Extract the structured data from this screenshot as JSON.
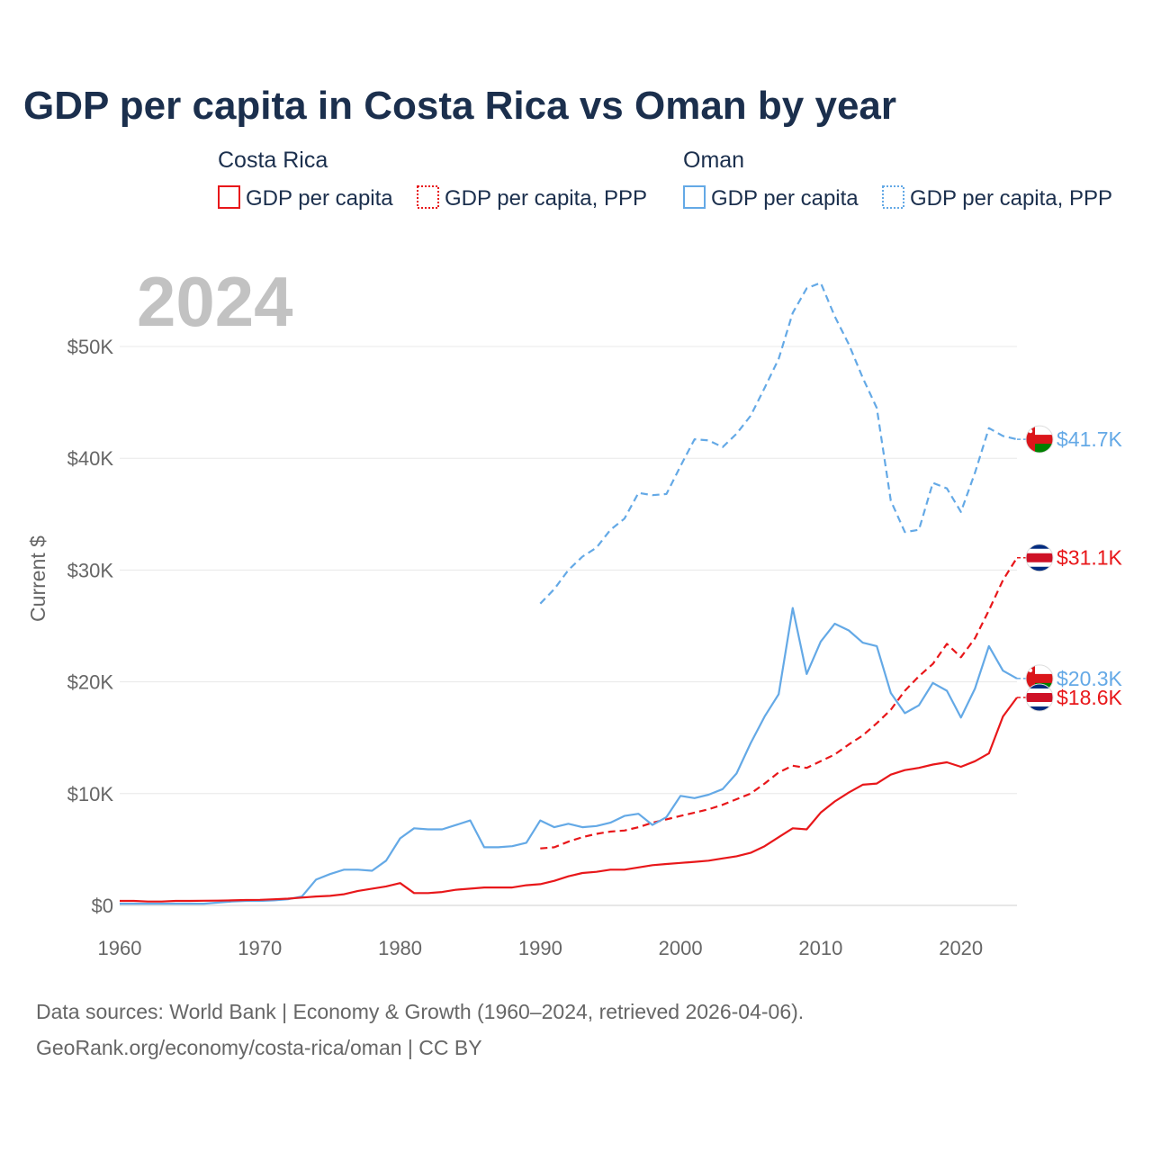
{
  "chart_data": {
    "type": "line",
    "title": "GDP per capita in Costa Rica vs Oman by year",
    "ylabel": "Current $",
    "xlabel": "",
    "year_label": "2024",
    "xlim": [
      1960,
      2024
    ],
    "ylim": [
      0,
      56000
    ],
    "x_ticks": [
      1960,
      1970,
      1980,
      1990,
      2000,
      2010,
      2020
    ],
    "y_ticks": [
      {
        "value": 0,
        "label": "$0"
      },
      {
        "value": 10000,
        "label": "$10K"
      },
      {
        "value": 20000,
        "label": "$20K"
      },
      {
        "value": 30000,
        "label": "$30K"
      },
      {
        "value": 40000,
        "label": "$40K"
      },
      {
        "value": 50000,
        "label": "$50K"
      }
    ],
    "legend": {
      "groups": [
        {
          "name": "Costa Rica",
          "items": [
            "GDP per capita",
            "GDP per capita, PPP"
          ]
        },
        {
          "name": "Oman",
          "items": [
            "GDP per capita",
            "GDP per capita, PPP"
          ]
        }
      ]
    },
    "series": [
      {
        "name": "Oman GDP per capita, PPP",
        "country": "Oman",
        "color": "#64a9e6",
        "dashed": true,
        "end_label": "$41.7K",
        "x": [
          1990,
          1991,
          1992,
          1993,
          1994,
          1995,
          1996,
          1997,
          1998,
          1999,
          2000,
          2001,
          2002,
          2003,
          2004,
          2005,
          2006,
          2007,
          2008,
          2009,
          2010,
          2011,
          2012,
          2013,
          2014,
          2015,
          2016,
          2017,
          2018,
          2019,
          2020,
          2021,
          2022,
          2023,
          2024
        ],
        "values": [
          27000,
          28300,
          30000,
          31200,
          32000,
          33600,
          34600,
          36900,
          36700,
          36800,
          39300,
          41700,
          41600,
          41000,
          42200,
          43800,
          46300,
          48900,
          53000,
          55200,
          55700,
          52700,
          50200,
          47200,
          44500,
          36200,
          33400,
          33600,
          37800,
          37300,
          35200,
          38700,
          42700,
          42000,
          41700
        ]
      },
      {
        "name": "Costa Rica GDP per capita, PPP",
        "country": "Costa Rica",
        "color": "#e8171a",
        "dashed": true,
        "end_label": "$31.1K",
        "x": [
          1990,
          1991,
          1992,
          1993,
          1994,
          1995,
          1996,
          1997,
          1998,
          1999,
          2000,
          2001,
          2002,
          2003,
          2004,
          2005,
          2006,
          2007,
          2008,
          2009,
          2010,
          2011,
          2012,
          2013,
          2014,
          2015,
          2016,
          2017,
          2018,
          2019,
          2020,
          2021,
          2022,
          2023,
          2024
        ],
        "values": [
          5100,
          5200,
          5700,
          6100,
          6400,
          6600,
          6700,
          7000,
          7400,
          7700,
          8000,
          8300,
          8600,
          9000,
          9500,
          10000,
          10900,
          11900,
          12500,
          12300,
          12900,
          13500,
          14400,
          15200,
          16300,
          17500,
          19200,
          20500,
          21600,
          23400,
          22200,
          23900,
          26400,
          29100,
          31100
        ]
      },
      {
        "name": "Oman GDP per capita",
        "country": "Oman",
        "color": "#64a9e6",
        "dashed": false,
        "end_label": "$20.3K",
        "x": [
          1960,
          1961,
          1962,
          1963,
          1964,
          1965,
          1966,
          1967,
          1968,
          1969,
          1970,
          1971,
          1972,
          1973,
          1974,
          1975,
          1976,
          1977,
          1978,
          1979,
          1980,
          1981,
          1982,
          1983,
          1984,
          1985,
          1986,
          1987,
          1988,
          1989,
          1990,
          1991,
          1992,
          1993,
          1994,
          1995,
          1996,
          1997,
          1998,
          1999,
          2000,
          2001,
          2002,
          2003,
          2004,
          2005,
          2006,
          2007,
          2008,
          2009,
          2010,
          2011,
          2012,
          2013,
          2014,
          2015,
          2016,
          2017,
          2018,
          2019,
          2020,
          2021,
          2022,
          2023,
          2024
        ],
        "values": [
          150,
          150,
          150,
          150,
          150,
          150,
          150,
          250,
          350,
          400,
          400,
          450,
          550,
          800,
          2300,
          2800,
          3200,
          3200,
          3100,
          4000,
          6000,
          6900,
          6800,
          6800,
          7200,
          7600,
          5200,
          5200,
          5300,
          5600,
          7600,
          7000,
          7300,
          7000,
          7100,
          7400,
          8000,
          8200,
          7200,
          7900,
          9800,
          9600,
          9900,
          10400,
          11800,
          14500,
          16900,
          18900,
          26600,
          20700,
          23600,
          25200,
          24600,
          23500,
          23200,
          19000,
          17200,
          17900,
          19900,
          19200,
          16800,
          19400,
          23200,
          21000,
          20300
        ]
      },
      {
        "name": "Costa Rica GDP per capita",
        "country": "Costa Rica",
        "color": "#e8171a",
        "dashed": false,
        "end_label": "$18.6K",
        "x": [
          1960,
          1961,
          1962,
          1963,
          1964,
          1965,
          1966,
          1967,
          1968,
          1969,
          1970,
          1971,
          1972,
          1973,
          1974,
          1975,
          1976,
          1977,
          1978,
          1979,
          1980,
          1981,
          1982,
          1983,
          1984,
          1985,
          1986,
          1987,
          1988,
          1989,
          1990,
          1991,
          1992,
          1993,
          1994,
          1995,
          1996,
          1997,
          1998,
          1999,
          2000,
          2001,
          2002,
          2003,
          2004,
          2005,
          2006,
          2007,
          2008,
          2009,
          2010,
          2011,
          2012,
          2013,
          2014,
          2015,
          2016,
          2017,
          2018,
          2019,
          2020,
          2021,
          2022,
          2023,
          2024
        ],
        "values": [
          400,
          400,
          350,
          350,
          400,
          400,
          420,
          430,
          450,
          480,
          500,
          550,
          600,
          700,
          800,
          850,
          1000,
          1300,
          1500,
          1700,
          2000,
          1100,
          1100,
          1200,
          1400,
          1500,
          1600,
          1600,
          1600,
          1800,
          1900,
          2200,
          2600,
          2900,
          3000,
          3200,
          3200,
          3400,
          3600,
          3700,
          3800,
          3900,
          4000,
          4200,
          4400,
          4700,
          5300,
          6100,
          6900,
          6800,
          8300,
          9300,
          10100,
          10800,
          10900,
          11700,
          12100,
          12300,
          12600,
          12800,
          12400,
          12900,
          13600,
          16900,
          18600
        ]
      }
    ]
  },
  "source": {
    "line1": "Data sources: World Bank | Economy & Growth (1960–2024, retrieved 2026-04-06).",
    "line2": "GeoRank.org/economy/costa-rica/oman | CC BY"
  }
}
